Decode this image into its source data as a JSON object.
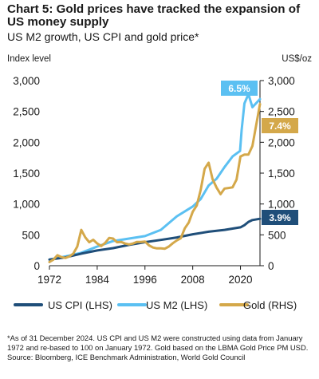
{
  "header": {
    "title": "Chart 5: Gold prices have tracked the expansion of US money supply",
    "subtitle": "US M2 growth, US CPI and gold price*"
  },
  "footer": {
    "note": "*As of 31 December 2024. US CPI and US M2 were constructed using data from January 1972 and re-based to 100 on January 1972. Gold based on the LBMA Gold Price PM USD.",
    "source": "Source: Bloomberg, ICE Benchmark Administration, World Gold Council"
  },
  "chart_data": {
    "type": "line",
    "left_axis": {
      "label": "Index level",
      "range": [
        0,
        3000
      ],
      "ticks": [
        0,
        500,
        1000,
        1500,
        2000,
        2500,
        3000
      ],
      "tick_labels": [
        "0",
        "500",
        "1,000",
        "1,500",
        "2,000",
        "2,500",
        "3,000"
      ]
    },
    "right_axis": {
      "label": "US$/oz",
      "range": [
        0,
        3000
      ],
      "ticks": [
        0,
        500,
        1000,
        1500,
        2000,
        2500,
        3000
      ],
      "tick_labels": [
        "0",
        "500",
        "1,000",
        "1,500",
        "2,000",
        "2,500",
        "3,000"
      ]
    },
    "x_axis": {
      "range": [
        1972,
        2024.9
      ],
      "ticks": [
        1972,
        1984,
        1996,
        2008,
        2020
      ],
      "tick_labels": [
        "1972",
        "1984",
        "1996",
        "2008",
        "2020"
      ]
    },
    "grid": false,
    "legend_position": "bottom",
    "series": [
      {
        "name": "US CPI (LHS)",
        "axis": "left",
        "color": "#1f4e79",
        "end_label": "3.9%",
        "x": [
          1972,
          1976,
          1980,
          1984,
          1988,
          1992,
          1996,
          2000,
          2004,
          2008,
          2012,
          2016,
          2020,
          2021,
          2022,
          2023,
          2024.9
        ],
        "values": [
          100,
          135,
          195,
          247,
          285,
          337,
          381,
          418,
          458,
          509,
          551,
          580,
          622,
          657,
          710,
          740,
          760
        ]
      },
      {
        "name": "US M2 (LHS)",
        "axis": "left",
        "color": "#5bc0f2",
        "end_label": "6.5%",
        "x": [
          1972,
          1976,
          1980,
          1984,
          1988,
          1992,
          1996,
          2000,
          2004,
          2008,
          2010,
          2012,
          2014,
          2016,
          2018,
          2019.9,
          2020.3,
          2021,
          2022,
          2023,
          2024.9
        ],
        "values": [
          100,
          150,
          210,
          310,
          400,
          440,
          480,
          580,
          800,
          960,
          1080,
          1300,
          1410,
          1600,
          1770,
          1860,
          2200,
          2630,
          2780,
          2570,
          2700
        ]
      },
      {
        "name": "Gold (RHS)",
        "axis": "right",
        "color": "#d4a84a",
        "end_label": "7.4%",
        "x": [
          1972,
          1973,
          1974,
          1975,
          1976,
          1977,
          1978,
          1979,
          1980,
          1981,
          1982,
          1983,
          1984,
          1985,
          1986,
          1987,
          1988,
          1989,
          1990,
          1991,
          1992,
          1993,
          1994,
          1995,
          1996,
          1997,
          1998,
          1999,
          2000,
          2001,
          2002,
          2003,
          2004,
          2005,
          2006,
          2007,
          2008,
          2009,
          2010,
          2011,
          2012,
          2013,
          2014,
          2015,
          2016,
          2017,
          2018,
          2019,
          2020,
          2021,
          2022,
          2023,
          2024.9
        ],
        "values": [
          60,
          100,
          170,
          140,
          125,
          150,
          195,
          310,
          580,
          460,
          380,
          420,
          360,
          320,
          370,
          450,
          440,
          380,
          385,
          360,
          345,
          360,
          385,
          385,
          390,
          330,
          295,
          280,
          280,
          275,
          310,
          365,
          410,
          445,
          605,
          700,
          875,
          975,
          1225,
          1570,
          1670,
          1400,
          1265,
          1160,
          1250,
          1260,
          1270,
          1395,
          1770,
          1800,
          1800,
          1940,
          2620
        ]
      }
    ]
  }
}
